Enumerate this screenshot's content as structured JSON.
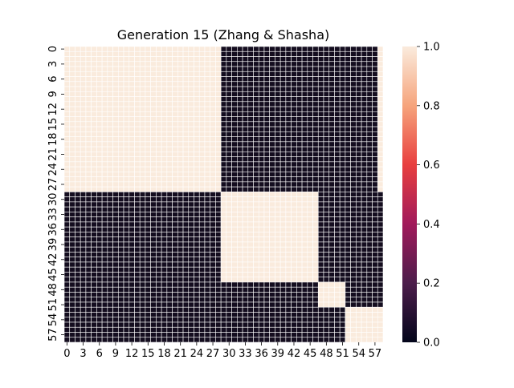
{
  "chart_data": {
    "type": "heatmap",
    "title": "Generation 15 (Zhang & Shasha)",
    "xlabel": "",
    "ylabel": "",
    "n": 59,
    "x_tick_labels": [
      "0",
      "3",
      "6",
      "9",
      "12",
      "15",
      "18",
      "21",
      "24",
      "27",
      "30",
      "33",
      "36",
      "39",
      "42",
      "45",
      "48",
      "51",
      "54",
      "57"
    ],
    "y_tick_labels": [
      "0",
      "3",
      "6",
      "9",
      "12",
      "15",
      "18",
      "21",
      "24",
      "27",
      "30",
      "33",
      "36",
      "39",
      "42",
      "45",
      "48",
      "51",
      "54",
      "57"
    ],
    "blocks": [
      {
        "rows": [
          0,
          28
        ],
        "cols": [
          0,
          28
        ],
        "value": 1
      },
      {
        "rows": [
          0,
          28
        ],
        "cols": [
          58,
          58
        ],
        "value": 1
      },
      {
        "rows": [
          29,
          46
        ],
        "cols": [
          29,
          46
        ],
        "value": 1
      },
      {
        "rows": [
          47,
          51
        ],
        "cols": [
          47,
          51
        ],
        "value": 1
      },
      {
        "rows": [
          52,
          58
        ],
        "cols": [
          52,
          58
        ],
        "value": 1
      }
    ],
    "default_value": 0,
    "vmin": 0,
    "vmax": 1,
    "colormap": "rocket",
    "colorbar_ticks": [
      "0.0",
      "0.2",
      "0.4",
      "0.6",
      "0.8",
      "1.0"
    ],
    "colorbar_tick_values": [
      0,
      0.2,
      0.4,
      0.6,
      0.8,
      1.0
    ],
    "colorbar_stops": [
      "#03051a",
      "#4c1d4b",
      "#a11a5b",
      "#e83f3f",
      "#f6a47c",
      "#faebdd"
    ],
    "low_color": "#140d1f",
    "high_color": "#faebdd",
    "cell_gridlines": true
  }
}
